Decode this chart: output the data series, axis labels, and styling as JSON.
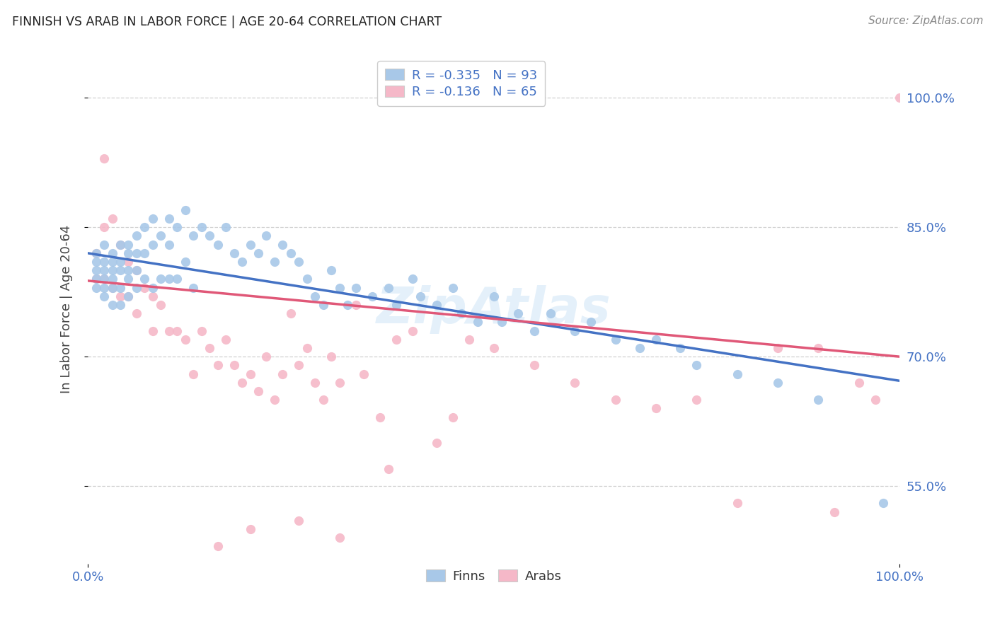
{
  "title": "FINNISH VS ARAB IN LABOR FORCE | AGE 20-64 CORRELATION CHART",
  "source": "Source: ZipAtlas.com",
  "ylabel": "In Labor Force | Age 20-64",
  "xlim": [
    0,
    1.0
  ],
  "ylim": [
    0.46,
    1.05
  ],
  "x_tick_positions": [
    0.0,
    1.0
  ],
  "x_tick_labels": [
    "0.0%",
    "100.0%"
  ],
  "y_tick_positions": [
    0.55,
    0.7,
    0.85,
    1.0
  ],
  "y_tick_labels": [
    "55.0%",
    "70.0%",
    "85.0%",
    "100.0%"
  ],
  "finn_color": "#a8c8e8",
  "arab_color": "#f5b8c8",
  "finn_line_color": "#4472c4",
  "arab_line_color": "#e05878",
  "tick_color": "#4472c4",
  "legend_finn_label": "R = -0.335   N = 93",
  "legend_arab_label": "R = -0.136   N = 65",
  "watermark": "ZipAtlas",
  "background_color": "#ffffff",
  "grid_color": "#d0d0d0",
  "finn_line_x0": 0.0,
  "finn_line_y0": 0.82,
  "finn_line_x1": 1.0,
  "finn_line_y1": 0.672,
  "arab_line_x0": 0.0,
  "arab_line_y0": 0.788,
  "arab_line_x1": 1.0,
  "arab_line_y1": 0.7,
  "finn_scatter_x": [
    0.01,
    0.01,
    0.01,
    0.01,
    0.01,
    0.02,
    0.02,
    0.02,
    0.02,
    0.02,
    0.02,
    0.03,
    0.03,
    0.03,
    0.03,
    0.03,
    0.03,
    0.04,
    0.04,
    0.04,
    0.04,
    0.04,
    0.05,
    0.05,
    0.05,
    0.05,
    0.05,
    0.06,
    0.06,
    0.06,
    0.06,
    0.07,
    0.07,
    0.07,
    0.08,
    0.08,
    0.08,
    0.09,
    0.09,
    0.1,
    0.1,
    0.1,
    0.11,
    0.11,
    0.12,
    0.12,
    0.13,
    0.13,
    0.14,
    0.15,
    0.16,
    0.17,
    0.18,
    0.19,
    0.2,
    0.21,
    0.22,
    0.23,
    0.24,
    0.25,
    0.26,
    0.27,
    0.28,
    0.29,
    0.3,
    0.31,
    0.32,
    0.33,
    0.35,
    0.37,
    0.38,
    0.4,
    0.41,
    0.43,
    0.45,
    0.46,
    0.48,
    0.5,
    0.51,
    0.53,
    0.55,
    0.57,
    0.6,
    0.62,
    0.65,
    0.68,
    0.7,
    0.73,
    0.75,
    0.8,
    0.85,
    0.9,
    0.98
  ],
  "finn_scatter_y": [
    0.82,
    0.81,
    0.8,
    0.79,
    0.78,
    0.83,
    0.81,
    0.8,
    0.79,
    0.78,
    0.77,
    0.82,
    0.81,
    0.8,
    0.79,
    0.78,
    0.76,
    0.83,
    0.81,
    0.8,
    0.78,
    0.76,
    0.83,
    0.82,
    0.8,
    0.79,
    0.77,
    0.84,
    0.82,
    0.8,
    0.78,
    0.85,
    0.82,
    0.79,
    0.86,
    0.83,
    0.78,
    0.84,
    0.79,
    0.86,
    0.83,
    0.79,
    0.85,
    0.79,
    0.87,
    0.81,
    0.84,
    0.78,
    0.85,
    0.84,
    0.83,
    0.85,
    0.82,
    0.81,
    0.83,
    0.82,
    0.84,
    0.81,
    0.83,
    0.82,
    0.81,
    0.79,
    0.77,
    0.76,
    0.8,
    0.78,
    0.76,
    0.78,
    0.77,
    0.78,
    0.76,
    0.79,
    0.77,
    0.76,
    0.78,
    0.75,
    0.74,
    0.77,
    0.74,
    0.75,
    0.73,
    0.75,
    0.73,
    0.74,
    0.72,
    0.71,
    0.72,
    0.71,
    0.69,
    0.68,
    0.67,
    0.65,
    0.53
  ],
  "arab_scatter_x": [
    0.01,
    0.01,
    0.02,
    0.02,
    0.02,
    0.03,
    0.03,
    0.04,
    0.04,
    0.05,
    0.05,
    0.06,
    0.06,
    0.07,
    0.08,
    0.08,
    0.09,
    0.1,
    0.11,
    0.12,
    0.13,
    0.14,
    0.15,
    0.16,
    0.17,
    0.18,
    0.19,
    0.2,
    0.21,
    0.22,
    0.23,
    0.24,
    0.25,
    0.26,
    0.27,
    0.28,
    0.29,
    0.3,
    0.31,
    0.33,
    0.34,
    0.36,
    0.37,
    0.38,
    0.4,
    0.43,
    0.45,
    0.47,
    0.5,
    0.55,
    0.6,
    0.65,
    0.7,
    0.75,
    0.8,
    0.85,
    0.9,
    0.92,
    0.95,
    0.97,
    1.0,
    0.16,
    0.2,
    0.26,
    0.31
  ],
  "arab_scatter_y": [
    0.82,
    0.79,
    0.93,
    0.85,
    0.79,
    0.86,
    0.78,
    0.83,
    0.77,
    0.81,
    0.77,
    0.8,
    0.75,
    0.78,
    0.77,
    0.73,
    0.76,
    0.73,
    0.73,
    0.72,
    0.68,
    0.73,
    0.71,
    0.69,
    0.72,
    0.69,
    0.67,
    0.68,
    0.66,
    0.7,
    0.65,
    0.68,
    0.75,
    0.69,
    0.71,
    0.67,
    0.65,
    0.7,
    0.67,
    0.76,
    0.68,
    0.63,
    0.57,
    0.72,
    0.73,
    0.6,
    0.63,
    0.72,
    0.71,
    0.69,
    0.67,
    0.65,
    0.64,
    0.65,
    0.53,
    0.71,
    0.71,
    0.52,
    0.67,
    0.65,
    1.0,
    0.48,
    0.5,
    0.51,
    0.49
  ]
}
